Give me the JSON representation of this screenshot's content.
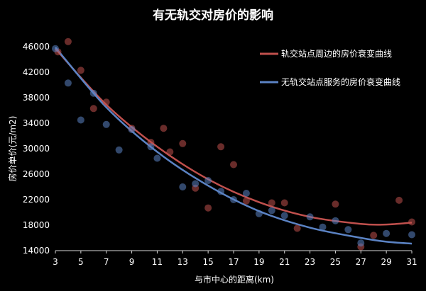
{
  "chart_data": {
    "type": "scatter",
    "title": "有无轨交对房价的影响",
    "xlabel": "与市中心的距离(km)",
    "ylabel": "房价单价(元/m2)",
    "xlim": [
      3,
      31
    ],
    "ylim": [
      14000,
      46000
    ],
    "x_ticks": [
      3,
      5,
      7,
      9,
      11,
      13,
      15,
      17,
      19,
      21,
      23,
      25,
      27,
      29,
      31
    ],
    "y_ticks": [
      14000,
      18000,
      22000,
      26000,
      30000,
      34000,
      38000,
      42000,
      46000
    ],
    "legend_position": "top-right",
    "series": [
      {
        "name": "轨交站点周边的房价衰变曲线",
        "color": "#c0504d",
        "fit_curve": {
          "x": [
            3,
            7,
            11,
            15,
            19,
            23,
            27,
            29,
            31
          ],
          "y": [
            45700,
            36900,
            30300,
            25200,
            21600,
            19300,
            18200,
            18100,
            18400
          ]
        },
        "points": [
          {
            "x": 3.2,
            "y": 45200
          },
          {
            "x": 4,
            "y": 46800
          },
          {
            "x": 5,
            "y": 42300
          },
          {
            "x": 6,
            "y": 36300
          },
          {
            "x": 7,
            "y": 37300
          },
          {
            "x": 9,
            "y": 33200
          },
          {
            "x": 10.5,
            "y": 31000
          },
          {
            "x": 11.5,
            "y": 33200
          },
          {
            "x": 12,
            "y": 29500
          },
          {
            "x": 13,
            "y": 30800
          },
          {
            "x": 14,
            "y": 23800
          },
          {
            "x": 15,
            "y": 20700
          },
          {
            "x": 16,
            "y": 30300
          },
          {
            "x": 17,
            "y": 27500
          },
          {
            "x": 18,
            "y": 21800
          },
          {
            "x": 20,
            "y": 21500
          },
          {
            "x": 21,
            "y": 21500
          },
          {
            "x": 22,
            "y": 17500
          },
          {
            "x": 25,
            "y": 21300
          },
          {
            "x": 27,
            "y": 14600
          },
          {
            "x": 28,
            "y": 16400
          },
          {
            "x": 30,
            "y": 21900
          },
          {
            "x": 31,
            "y": 18500
          }
        ]
      },
      {
        "name": "无轨交站点服务的房价衰变曲线",
        "color": "#5b83c4",
        "fit_curve": {
          "x": [
            3,
            7,
            11,
            15,
            19,
            23,
            27,
            29,
            31
          ],
          "y": [
            45900,
            36500,
            29500,
            24200,
            20200,
            17600,
            16000,
            15400,
            15100
          ]
        },
        "points": [
          {
            "x": 3,
            "y": 45700
          },
          {
            "x": 4,
            "y": 40300
          },
          {
            "x": 5,
            "y": 34500
          },
          {
            "x": 6,
            "y": 38700
          },
          {
            "x": 7,
            "y": 33800
          },
          {
            "x": 8,
            "y": 29800
          },
          {
            "x": 9,
            "y": 33000
          },
          {
            "x": 10.5,
            "y": 30300
          },
          {
            "x": 11,
            "y": 28500
          },
          {
            "x": 13,
            "y": 24000
          },
          {
            "x": 14,
            "y": 24500
          },
          {
            "x": 15,
            "y": 25000
          },
          {
            "x": 16,
            "y": 23300
          },
          {
            "x": 17,
            "y": 22000
          },
          {
            "x": 18,
            "y": 23000
          },
          {
            "x": 19,
            "y": 19800
          },
          {
            "x": 20,
            "y": 20300
          },
          {
            "x": 21,
            "y": 19500
          },
          {
            "x": 23,
            "y": 19300
          },
          {
            "x": 24,
            "y": 17700
          },
          {
            "x": 25,
            "y": 18700
          },
          {
            "x": 26,
            "y": 17300
          },
          {
            "x": 27,
            "y": 15200
          },
          {
            "x": 29,
            "y": 16700
          },
          {
            "x": 31,
            "y": 16500
          }
        ]
      }
    ]
  }
}
